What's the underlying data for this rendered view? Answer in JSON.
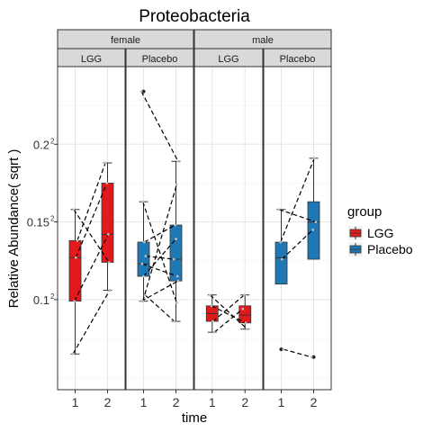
{
  "chart_data": {
    "type": "boxplot",
    "title": "Proteobacteria",
    "xlabel": "time",
    "ylabel": "Relative Abundance( sqrt )",
    "y_scale": "sqrt",
    "y_ticks": [
      {
        "value": 0.01,
        "label": "0.1",
        "sup": "2"
      },
      {
        "value": 0.0225,
        "label": "0.15",
        "sup": "2"
      },
      {
        "value": 0.04,
        "label": "0.2",
        "sup": "2"
      }
    ],
    "x_ticks": [
      "1",
      "2"
    ],
    "ylim_sqrt": [
      0.042,
      0.25
    ],
    "grid": true,
    "legend": {
      "title": "group",
      "position": "right",
      "entries": [
        {
          "name": "LGG",
          "color": "#e31a1c"
        },
        {
          "name": "Placebo",
          "color": "#1f78b4"
        }
      ]
    },
    "facet_row_labels": [
      "female",
      "male"
    ],
    "panels": [
      {
        "sex": "female",
        "group": "LGG",
        "boxes": [
          {
            "time": "1",
            "min": 0.065,
            "q1": 0.099,
            "median": 0.127,
            "q3": 0.138,
            "max": 0.158
          },
          {
            "time": "2",
            "min": 0.106,
            "q1": 0.124,
            "median": 0.142,
            "q3": 0.175,
            "max": 0.188
          }
        ],
        "pairs": [
          [
            0.065,
            0.106
          ],
          [
            0.099,
            0.142
          ],
          [
            0.127,
            0.175
          ],
          [
            0.138,
            0.188
          ],
          [
            0.158,
            0.124
          ]
        ]
      },
      {
        "sex": "female",
        "group": "Placebo",
        "boxes": [
          {
            "time": "1",
            "min": 0.099,
            "q1": 0.115,
            "median": 0.123,
            "q3": 0.137,
            "max": 0.163
          },
          {
            "time": "2",
            "min": 0.086,
            "q1": 0.112,
            "median": 0.126,
            "q3": 0.148,
            "max": 0.189
          }
        ],
        "pairs": [
          [
            0.234,
            0.189
          ],
          [
            0.163,
            0.098
          ],
          [
            0.137,
            0.148
          ],
          [
            0.128,
            0.126
          ],
          [
            0.123,
            0.115
          ],
          [
            0.115,
            0.139
          ],
          [
            0.103,
            0.086
          ],
          [
            0.099,
            0.112
          ],
          [
            0.099,
            0.174
          ]
        ],
        "outliers": [
          {
            "time": "1",
            "value": 0.234
          }
        ]
      },
      {
        "sex": "male",
        "group": "LGG",
        "boxes": [
          {
            "time": "1",
            "min": 0.079,
            "q1": 0.086,
            "median": 0.091,
            "q3": 0.096,
            "max": 0.103
          },
          {
            "time": "2",
            "min": 0.081,
            "q1": 0.085,
            "median": 0.09,
            "q3": 0.096,
            "max": 0.103
          }
        ],
        "pairs": [
          [
            0.103,
            0.081
          ],
          [
            0.096,
            0.085
          ],
          [
            0.086,
            0.103
          ],
          [
            0.079,
            0.094
          ]
        ]
      },
      {
        "sex": "male",
        "group": "Placebo",
        "boxes": [
          {
            "time": "1",
            "q1": 0.11,
            "median": 0.127,
            "q3": 0.137,
            "max": 0.158
          },
          {
            "time": "2",
            "q1": 0.126,
            "median": 0.15,
            "q3": 0.163,
            "max": 0.191
          }
        ],
        "pairs": [
          [
            0.158,
            0.15
          ],
          [
            0.137,
            0.191
          ],
          [
            0.126,
            0.145
          ],
          [
            0.068,
            0.063
          ]
        ],
        "outliers": [
          {
            "time": "1",
            "value": 0.068
          },
          {
            "time": "2",
            "value": 0.063
          }
        ]
      }
    ]
  }
}
